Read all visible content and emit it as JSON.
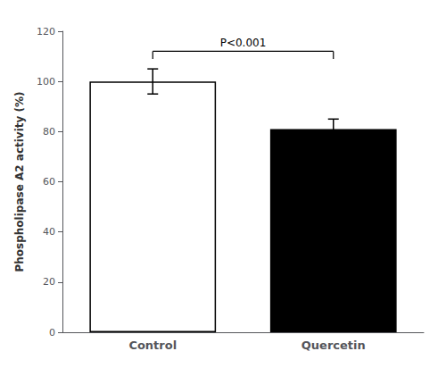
{
  "chart_data": {
    "type": "bar",
    "categories": [
      "Control",
      "Quercetin"
    ],
    "values": [
      100,
      81
    ],
    "errors": [
      5,
      4
    ],
    "colors": [
      "#ffffff",
      "#000000"
    ],
    "ylabel": "Phospholipase A2 activity (%)",
    "ylim": [
      0,
      120
    ],
    "yticks": [
      0,
      20,
      40,
      60,
      80,
      100,
      120
    ],
    "annotations": [
      {
        "text": "P<0.001",
        "between": [
          "Control",
          "Quercetin"
        ],
        "y": 112,
        "tick_down": 3
      }
    ],
    "grid": false
  }
}
